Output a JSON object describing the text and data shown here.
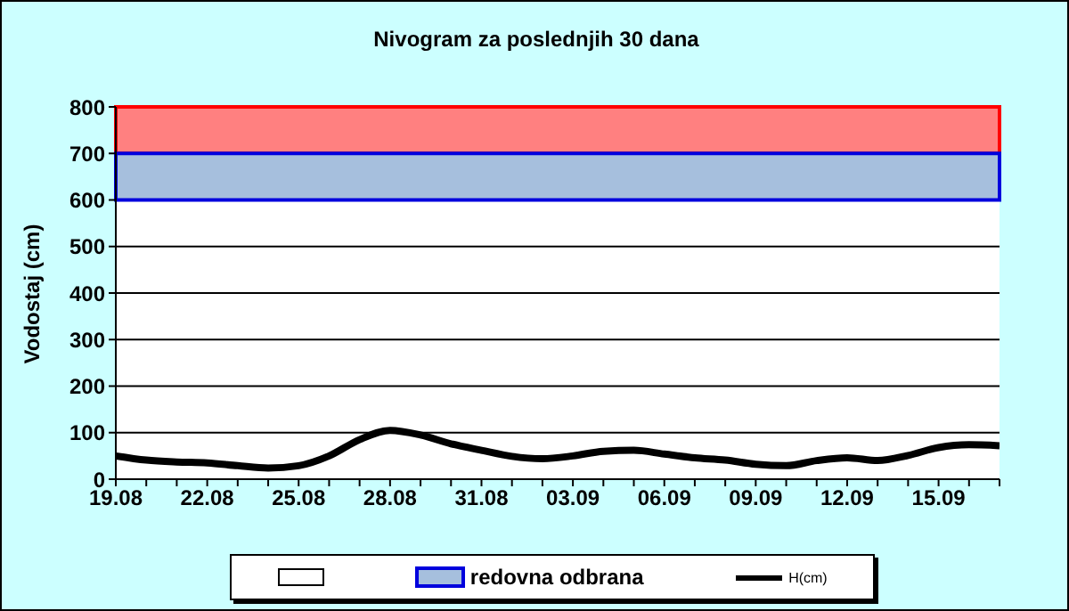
{
  "chart_data": {
    "type": "line",
    "title": "Nivogram za poslednjih 30 dana",
    "ylabel": "Vodostaj (cm)",
    "categories": [
      "19.08",
      null,
      null,
      "22.08",
      null,
      null,
      "25.08",
      null,
      null,
      "28.08",
      null,
      null,
      "31.08",
      null,
      null,
      "03.09",
      null,
      null,
      "06.09",
      null,
      null,
      "09.09",
      null,
      null,
      "12.09",
      null,
      null,
      "15.09",
      null,
      null
    ],
    "series": [
      {
        "name": "H(cm)",
        "color": "#000000",
        "values": [
          50,
          41,
          37,
          35,
          29,
          24,
          29,
          50,
          85,
          105,
          95,
          76,
          62,
          49,
          44,
          50,
          60,
          62,
          54,
          46,
          41,
          32,
          29,
          40,
          46,
          40,
          51,
          68,
          74,
          72
        ]
      }
    ],
    "ylim": [
      0,
      800
    ],
    "yticks": [
      0,
      100,
      200,
      300,
      400,
      500,
      600,
      700,
      800
    ],
    "grid": "y",
    "legend": "bottom",
    "marker": "none",
    "bands": [
      {
        "axis": "y",
        "from": 700,
        "to": 800,
        "color": "#ff8080"
      },
      {
        "axis": "y",
        "from": 600,
        "to": 700,
        "label": "redovna odbrana",
        "color": "#a6bfdd"
      }
    ]
  }
}
